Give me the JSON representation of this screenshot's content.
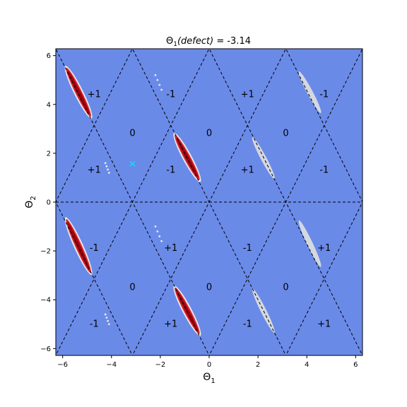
{
  "chart_data": {
    "type": "heatmap",
    "title_prefix": "Θ",
    "title_sub": "1",
    "title_italic": "(defect)",
    "title_suffix": " = -3.14",
    "xlabel_main": "Θ",
    "xlabel_sub": "1",
    "ylabel_main": "Θ",
    "ylabel_sub": "2",
    "xlim": [
      -6.28,
      6.28
    ],
    "ylim": [
      -6.28,
      6.28
    ],
    "xticks": [
      -6,
      -4,
      -2,
      0,
      2,
      4,
      6
    ],
    "yticks": [
      -6,
      -4,
      -2,
      0,
      2,
      4,
      6
    ],
    "xtick_labels": [
      "−6",
      "−4",
      "−2",
      "0",
      "2",
      "4",
      "6"
    ],
    "ytick_labels": [
      "−6",
      "−4",
      "−2",
      "0",
      "2",
      "4",
      "6"
    ],
    "background_color": "#6a8ae8",
    "grid": false,
    "defect_marker": {
      "x": -3.14,
      "y": 1.57,
      "color": "#00e5ff"
    },
    "region_labels": [
      {
        "x": -4.71,
        "y": 4.4,
        "text": "+1"
      },
      {
        "x": -1.57,
        "y": 4.4,
        "text": "-1"
      },
      {
        "x": 1.57,
        "y": 4.4,
        "text": "+1"
      },
      {
        "x": 4.71,
        "y": 4.4,
        "text": "-1"
      },
      {
        "x": -3.14,
        "y": 2.8,
        "text": "0"
      },
      {
        "x": 0.0,
        "y": 2.8,
        "text": "0"
      },
      {
        "x": 3.14,
        "y": 2.8,
        "text": "0"
      },
      {
        "x": -4.71,
        "y": 1.3,
        "text": "+1"
      },
      {
        "x": -1.57,
        "y": 1.3,
        "text": "-1"
      },
      {
        "x": 1.57,
        "y": 1.3,
        "text": "+1"
      },
      {
        "x": 4.71,
        "y": 1.3,
        "text": "-1"
      },
      {
        "x": -4.71,
        "y": -1.9,
        "text": "-1"
      },
      {
        "x": -1.57,
        "y": -1.9,
        "text": "+1"
      },
      {
        "x": 1.57,
        "y": -1.9,
        "text": "-1"
      },
      {
        "x": 4.71,
        "y": -1.9,
        "text": "+1"
      },
      {
        "x": -3.14,
        "y": -3.5,
        "text": "0"
      },
      {
        "x": 0.0,
        "y": -3.5,
        "text": "0"
      },
      {
        "x": 3.14,
        "y": -3.5,
        "text": "0"
      },
      {
        "x": -4.71,
        "y": -5.0,
        "text": "-1"
      },
      {
        "x": -1.57,
        "y": -5.0,
        "text": "+1"
      },
      {
        "x": 1.57,
        "y": -5.0,
        "text": "-1"
      },
      {
        "x": 4.71,
        "y": -5.0,
        "text": "+1"
      }
    ],
    "streaks": [
      {
        "x1": -5.85,
        "y1": 5.5,
        "x2": -4.85,
        "y2": 3.5,
        "type": "red"
      },
      {
        "x1": -1.4,
        "y1": 2.75,
        "x2": -0.4,
        "y2": 0.9,
        "type": "red"
      },
      {
        "x1": -5.85,
        "y1": -0.7,
        "x2": -4.85,
        "y2": -2.9,
        "type": "red"
      },
      {
        "x1": -1.4,
        "y1": -3.5,
        "x2": -0.4,
        "y2": -5.4,
        "type": "red"
      },
      {
        "x1": 3.7,
        "y1": 5.3,
        "x2": 4.55,
        "y2": 3.7,
        "type": "grey"
      },
      {
        "x1": 1.8,
        "y1": 2.6,
        "x2": 2.65,
        "y2": 1.0,
        "type": "grey"
      },
      {
        "x1": 3.7,
        "y1": -0.8,
        "x2": 4.55,
        "y2": -2.6,
        "type": "grey"
      },
      {
        "x1": 1.8,
        "y1": -3.6,
        "x2": 2.65,
        "y2": -5.3,
        "type": "grey"
      }
    ],
    "specks": [
      {
        "x1": -2.2,
        "y1": 5.2,
        "x2": -1.95,
        "y2": 4.6
      },
      {
        "x1": -2.2,
        "y1": -1.0,
        "x2": -1.95,
        "y2": -1.6
      },
      {
        "x1": -4.25,
        "y1": 1.6,
        "x2": -4.1,
        "y2": 1.2
      },
      {
        "x1": -4.25,
        "y1": -4.6,
        "x2": -4.1,
        "y2": -5.0
      }
    ],
    "colors": {
      "background": "#6a8ae8",
      "red_core": "#9e0012",
      "red_mid": "#d62728",
      "halo": "#e8e8ea",
      "grey_streak": "#d4d8e0",
      "dash": "#000000"
    }
  }
}
